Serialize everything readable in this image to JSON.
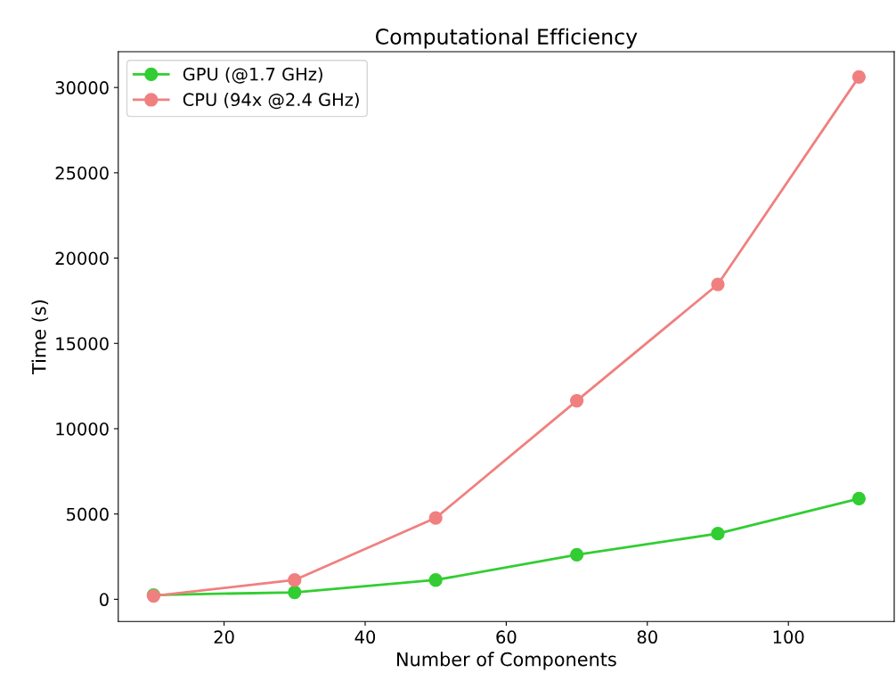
{
  "chart_data": {
    "type": "line",
    "title": "Computational Efficiency",
    "xlabel": "Number of Components",
    "ylabel": "Time (s)",
    "x": [
      10,
      30,
      50,
      70,
      90,
      110
    ],
    "series": [
      {
        "name": "GPU (@1.7 GHz)",
        "color": "#32cd32",
        "values": [
          250,
          410,
          1130,
          2610,
          3850,
          5900
        ]
      },
      {
        "name": "CPU (94x @2.4 GHz)",
        "color": "#f08080",
        "values": [
          200,
          1130,
          4770,
          11640,
          18460,
          30620
        ]
      }
    ],
    "xlim": [
      5,
      115
    ],
    "xticks": [
      20,
      40,
      60,
      80,
      100
    ],
    "ylim": [
      -1300,
      32100
    ],
    "yticks": [
      0,
      5000,
      10000,
      15000,
      20000,
      25000,
      30000
    ],
    "marker": "circle",
    "line_style": "solid",
    "legend": "top left",
    "grid": false
  }
}
